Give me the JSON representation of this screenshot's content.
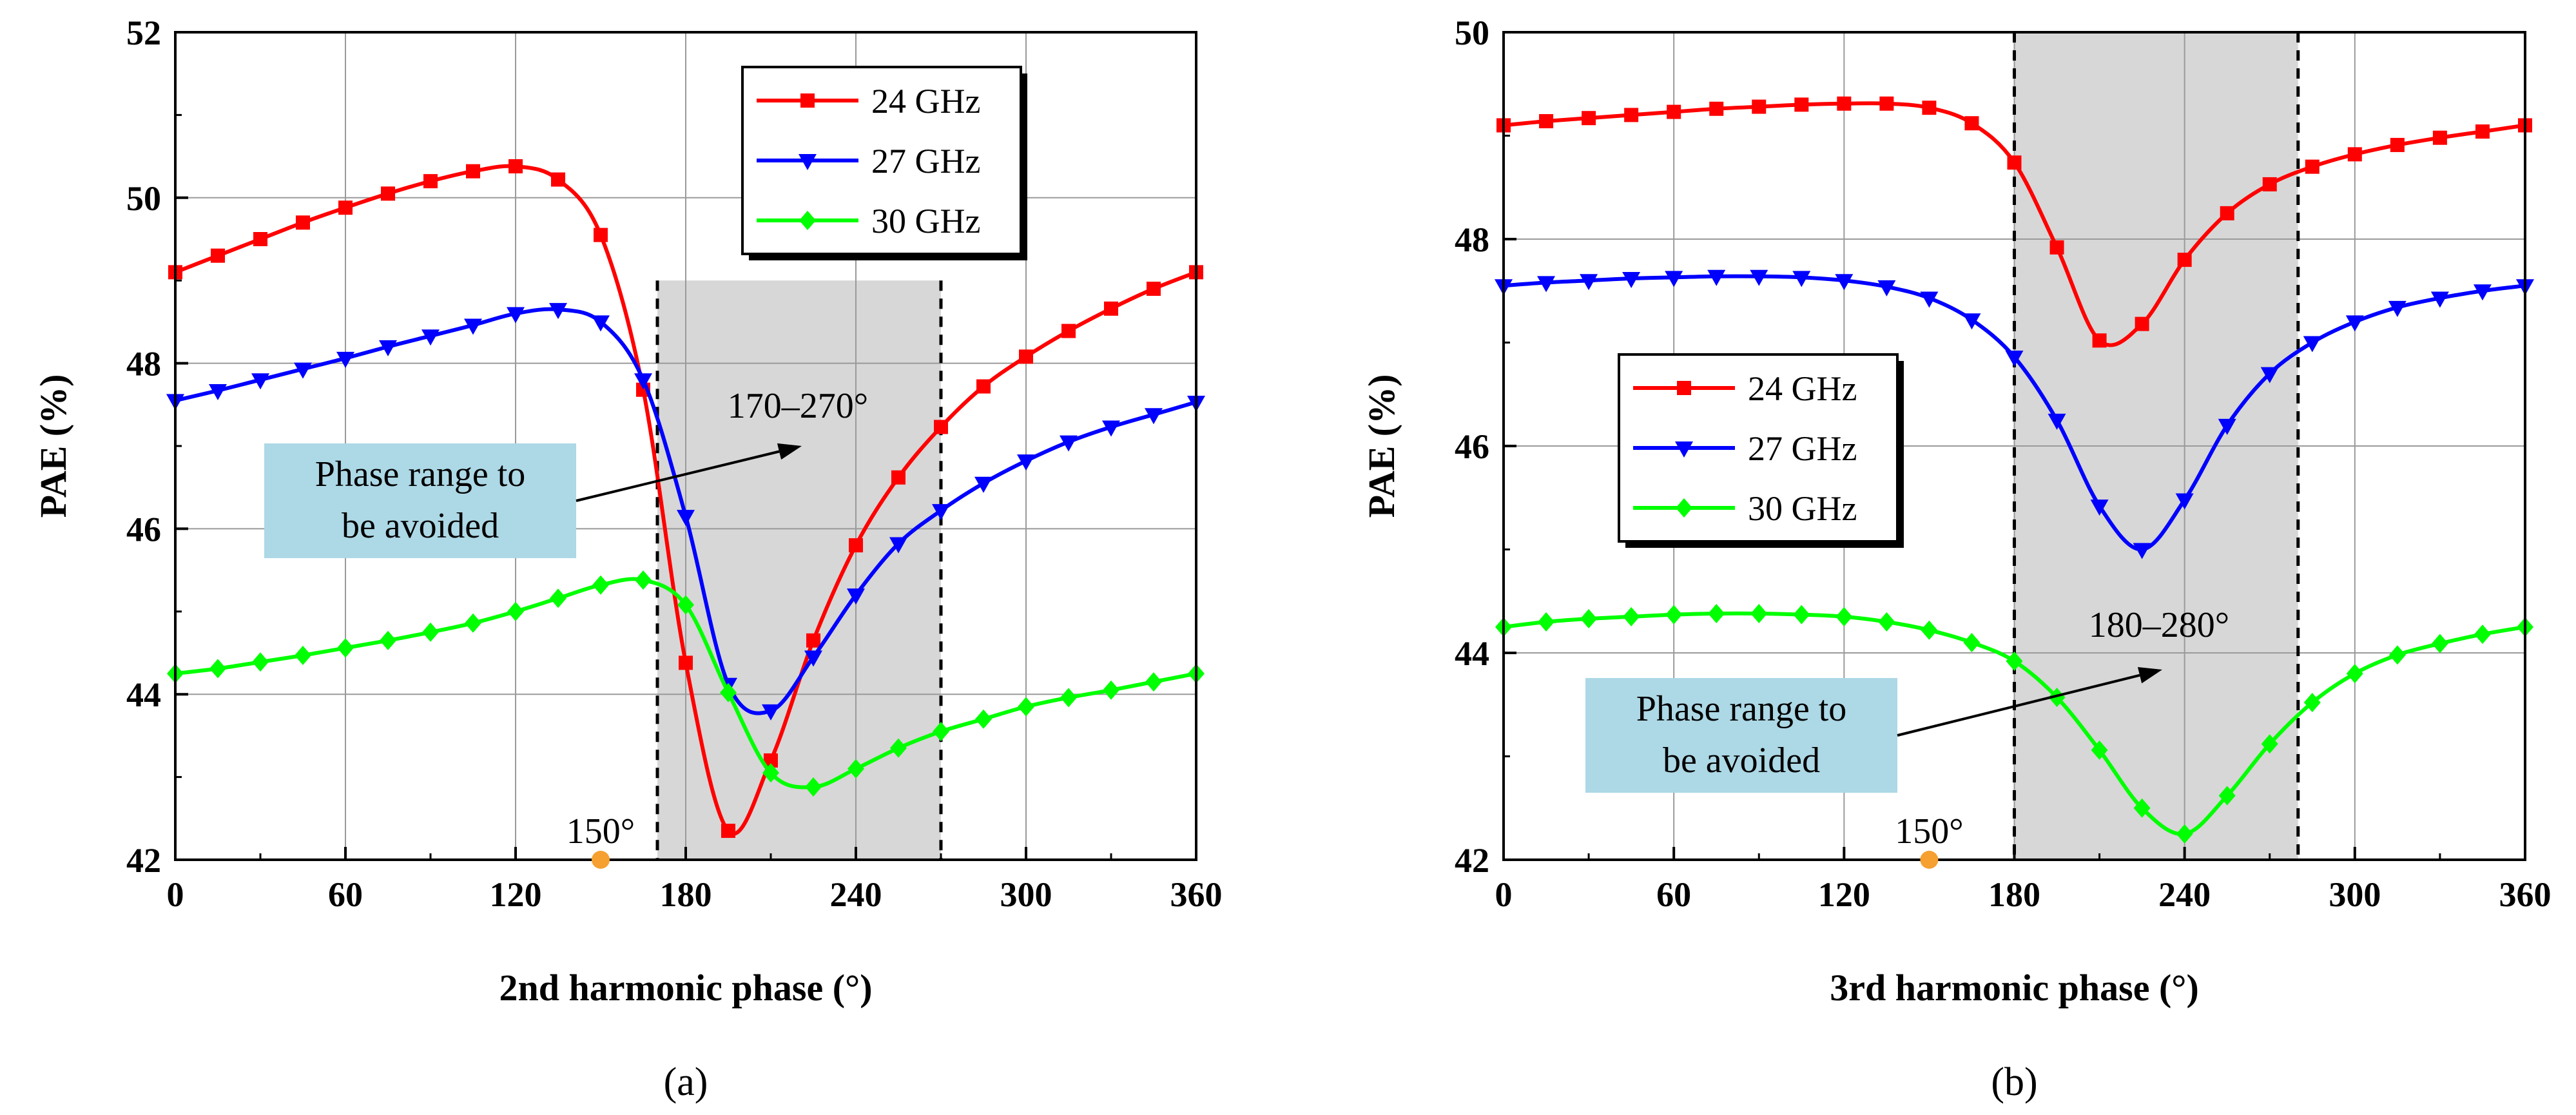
{
  "chart_data": [
    {
      "type": "line",
      "panel_label": "(a)",
      "xlabel": "2nd harmonic phase (°)",
      "ylabel": "PAE (%)",
      "xlim": [
        0,
        360
      ],
      "ylim": [
        42,
        52
      ],
      "xticks": [
        0,
        60,
        120,
        180,
        240,
        300,
        360
      ],
      "yticks": [
        42,
        44,
        46,
        48,
        50,
        52
      ],
      "grid": true,
      "legend": {
        "position": "top-right",
        "entries": [
          "24 GHz",
          "27 GHz",
          "30 GHz"
        ]
      },
      "shaded_region": {
        "x": [
          170,
          270
        ],
        "ymax": 49.0,
        "label": "170–270°"
      },
      "callout": {
        "lines": [
          "Phase range to",
          "be avoided"
        ]
      },
      "marker_annotation": {
        "x": 150,
        "label": "150°"
      },
      "x": [
        0,
        15,
        30,
        45,
        60,
        75,
        90,
        105,
        120,
        135,
        150,
        165,
        180,
        195,
        210,
        225,
        240,
        255,
        270,
        285,
        300,
        315,
        330,
        345,
        360
      ],
      "series": [
        {
          "name": "24 GHz",
          "color": "#ff0000",
          "marker": "square",
          "values": [
            49.1,
            49.3,
            49.5,
            49.7,
            49.88,
            50.05,
            50.2,
            50.32,
            50.38,
            50.22,
            49.55,
            47.68,
            44.38,
            42.35,
            43.2,
            44.65,
            45.8,
            46.62,
            47.23,
            47.72,
            48.08,
            48.39,
            48.66,
            48.9,
            49.1
          ]
        },
        {
          "name": "27 GHz",
          "color": "#0000ff",
          "marker": "triangle-down",
          "values": [
            47.55,
            47.67,
            47.8,
            47.93,
            48.06,
            48.2,
            48.33,
            48.46,
            48.6,
            48.65,
            48.5,
            47.8,
            46.15,
            44.12,
            43.8,
            44.45,
            45.2,
            45.82,
            46.22,
            46.55,
            46.82,
            47.05,
            47.23,
            47.38,
            47.53
          ]
        },
        {
          "name": "30 GHz",
          "color": "#00ff00",
          "marker": "diamond",
          "values": [
            44.25,
            44.31,
            44.39,
            44.47,
            44.56,
            44.65,
            44.75,
            44.86,
            45.0,
            45.16,
            45.32,
            45.38,
            45.08,
            44.02,
            43.05,
            42.88,
            43.1,
            43.35,
            43.55,
            43.7,
            43.85,
            43.96,
            44.05,
            44.15,
            44.25
          ]
        }
      ]
    },
    {
      "type": "line",
      "panel_label": "(b)",
      "xlabel": "3rd harmonic phase (°)",
      "ylabel": "PAE (%)",
      "xlim": [
        0,
        360
      ],
      "ylim": [
        42,
        50
      ],
      "xticks": [
        0,
        60,
        120,
        180,
        240,
        300,
        360
      ],
      "yticks": [
        42,
        44,
        46,
        48,
        50
      ],
      "grid": true,
      "legend": {
        "position": "center-left",
        "entries": [
          "24 GHz",
          "27 GHz",
          "30 GHz"
        ]
      },
      "shaded_region": {
        "x": [
          180,
          280
        ],
        "ymax": 50.0,
        "label": "180–280°"
      },
      "callout": {
        "lines": [
          "Phase range to",
          "be avoided"
        ]
      },
      "marker_annotation": {
        "x": 150,
        "label": "150°"
      },
      "x": [
        0,
        15,
        30,
        45,
        60,
        75,
        90,
        105,
        120,
        135,
        150,
        165,
        180,
        195,
        210,
        225,
        240,
        255,
        270,
        285,
        300,
        315,
        330,
        345,
        360
      ],
      "series": [
        {
          "name": "24 GHz",
          "color": "#ff0000",
          "marker": "square",
          "values": [
            49.1,
            49.14,
            49.17,
            49.2,
            49.23,
            49.26,
            49.28,
            49.3,
            49.31,
            49.31,
            49.27,
            49.12,
            48.74,
            47.92,
            47.02,
            47.18,
            47.8,
            48.25,
            48.53,
            48.7,
            48.82,
            48.91,
            48.98,
            49.04,
            49.1
          ]
        },
        {
          "name": "27 GHz",
          "color": "#0000ff",
          "marker": "triangle-down",
          "values": [
            47.55,
            47.58,
            47.6,
            47.62,
            47.63,
            47.64,
            47.64,
            47.63,
            47.6,
            47.54,
            47.43,
            47.22,
            46.86,
            46.25,
            45.42,
            45.0,
            45.48,
            46.2,
            46.7,
            47.0,
            47.2,
            47.34,
            47.43,
            47.5,
            47.55
          ]
        },
        {
          "name": "30 GHz",
          "color": "#00ff00",
          "marker": "diamond",
          "values": [
            44.25,
            44.3,
            44.33,
            44.35,
            44.37,
            44.38,
            44.38,
            44.37,
            44.35,
            44.3,
            44.22,
            44.1,
            43.92,
            43.57,
            43.06,
            42.5,
            42.25,
            42.62,
            43.12,
            43.52,
            43.8,
            43.98,
            44.09,
            44.18,
            44.25
          ]
        }
      ]
    }
  ]
}
